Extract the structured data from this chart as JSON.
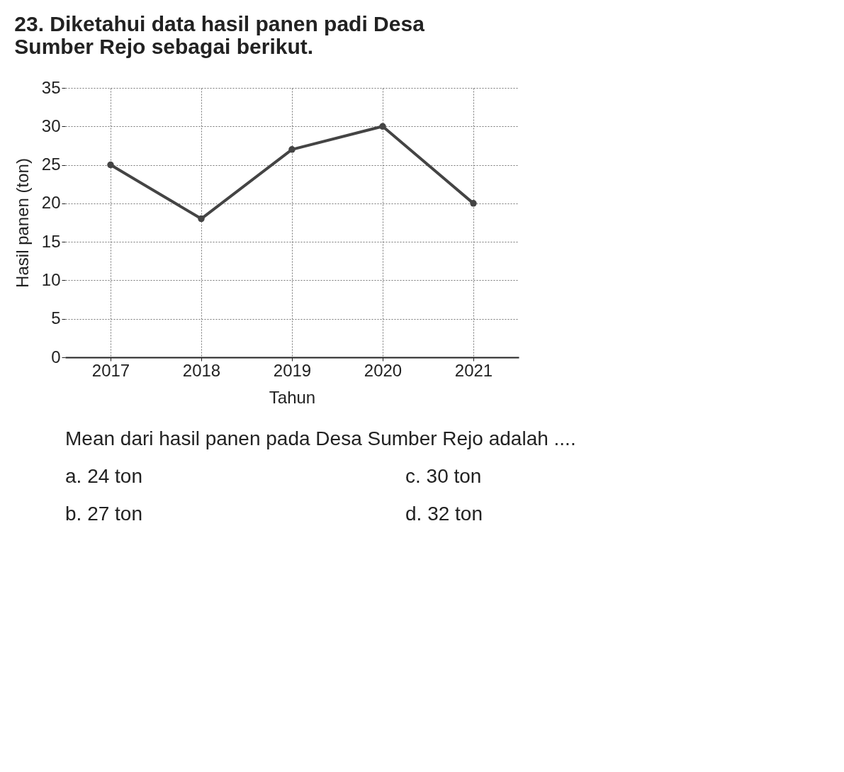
{
  "chart_data": {
    "type": "line",
    "title": [
      "23. Diketahui data hasil panen padi Desa",
      "Sumber Rejo sebagai berikut."
    ],
    "xlabel": "Tahun",
    "ylabel": "Hasil panen (ton)",
    "categories": [
      "2017",
      "2018",
      "2019",
      "2020",
      "2021"
    ],
    "series": [
      {
        "color": "#444444",
        "values": [
          25,
          18,
          27,
          30,
          20
        ]
      }
    ],
    "ylim": [
      0,
      35
    ],
    "yticks": [
      0,
      5,
      10,
      15,
      20,
      25,
      30,
      35
    ],
    "grid": true,
    "marker": "circle",
    "line_style": "solid",
    "annotations": [
      "Mean dari hasil panen pada Desa Sumber Rejo adalah ....",
      "a.  24 ton",
      "b.  27 ton",
      "c.  30 ton",
      "d.  32 ton"
    ]
  }
}
